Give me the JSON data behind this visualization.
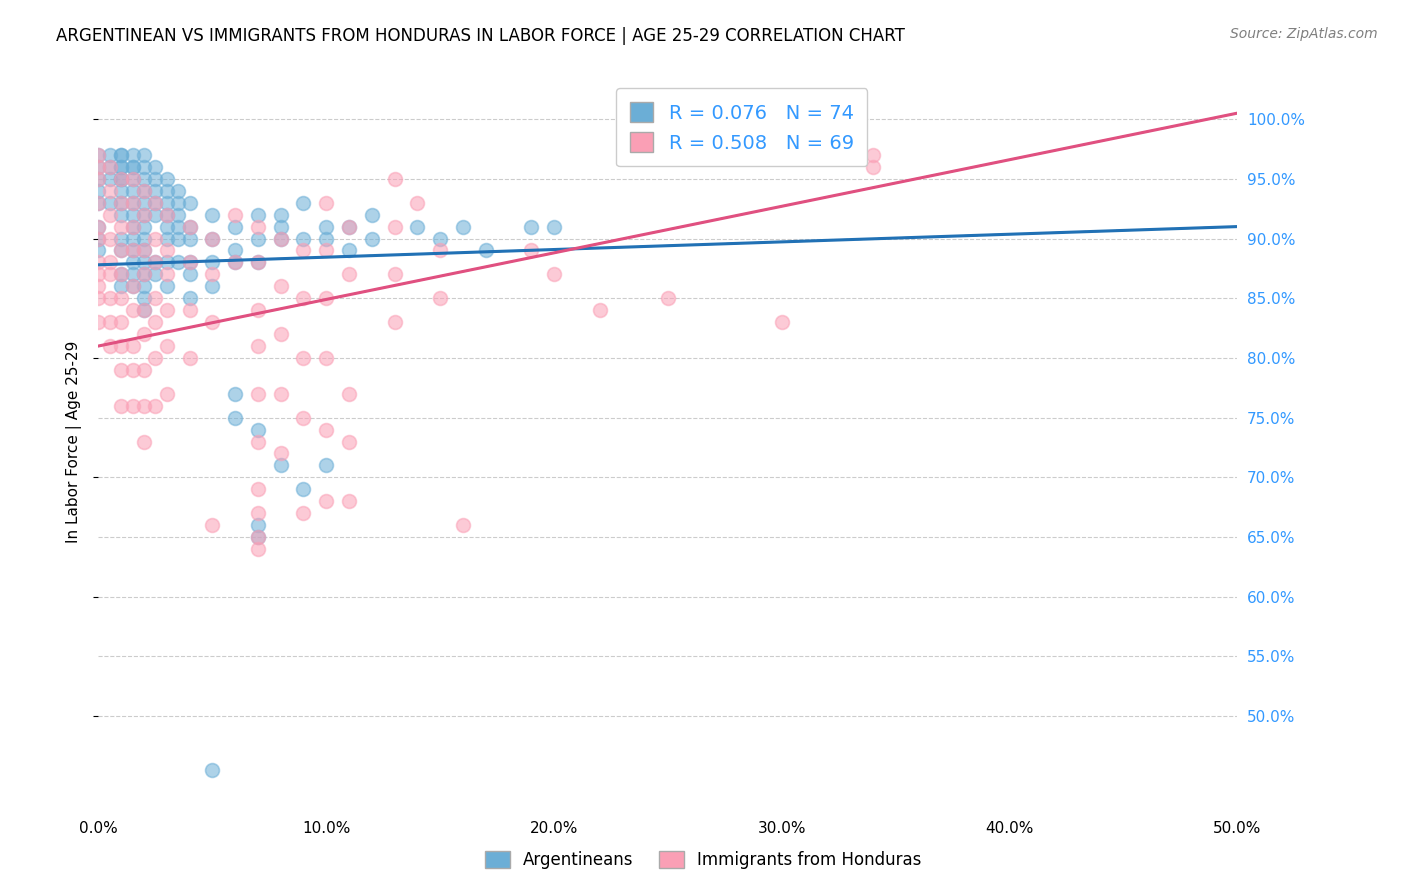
{
  "title": "ARGENTINEAN VS IMMIGRANTS FROM HONDURAS IN LABOR FORCE | AGE 25-29 CORRELATION CHART",
  "source": "Source: ZipAtlas.com",
  "ylabel": "In Labor Force | Age 25-29",
  "xlabel_ticks": [
    "0.0%",
    "10.0%",
    "20.0%",
    "30.0%",
    "40.0%",
    "50.0%"
  ],
  "xlabel_vals": [
    0.0,
    0.1,
    0.2,
    0.3,
    0.4,
    0.5
  ],
  "ylabel_ticks": [
    "100.0%",
    "95.0%",
    "90.0%",
    "85.0%",
    "80.0%",
    "75.0%",
    "70.0%",
    "65.0%",
    "60.0%",
    "55.0%",
    "50.0%"
  ],
  "ylabel_vals": [
    1.0,
    0.95,
    0.9,
    0.85,
    0.8,
    0.75,
    0.7,
    0.65,
    0.6,
    0.55,
    0.5
  ],
  "xlim": [
    0.0,
    0.5
  ],
  "ylim": [
    0.42,
    1.04
  ],
  "argentinean_R": 0.076,
  "argentinean_N": 74,
  "honduras_R": 0.508,
  "honduras_N": 69,
  "blue_color": "#6baed6",
  "pink_color": "#fa9fb5",
  "blue_line_color": "#2171b5",
  "pink_line_color": "#e05080",
  "blue_line_x": [
    0.0,
    0.5
  ],
  "blue_line_y": [
    0.878,
    0.91
  ],
  "pink_line_x": [
    0.0,
    0.5
  ],
  "pink_line_y": [
    0.81,
    1.005
  ],
  "blue_scatter": [
    [
      0.0,
      0.97
    ],
    [
      0.0,
      0.96
    ],
    [
      0.0,
      0.95
    ],
    [
      0.0,
      0.94
    ],
    [
      0.0,
      0.93
    ],
    [
      0.0,
      0.91
    ],
    [
      0.0,
      0.9
    ],
    [
      0.0,
      0.89
    ],
    [
      0.005,
      0.97
    ],
    [
      0.005,
      0.96
    ],
    [
      0.005,
      0.95
    ],
    [
      0.005,
      0.93
    ],
    [
      0.01,
      0.97
    ],
    [
      0.01,
      0.97
    ],
    [
      0.01,
      0.96
    ],
    [
      0.01,
      0.96
    ],
    [
      0.01,
      0.95
    ],
    [
      0.01,
      0.95
    ],
    [
      0.01,
      0.94
    ],
    [
      0.01,
      0.93
    ],
    [
      0.01,
      0.92
    ],
    [
      0.01,
      0.9
    ],
    [
      0.01,
      0.89
    ],
    [
      0.01,
      0.87
    ],
    [
      0.01,
      0.86
    ],
    [
      0.015,
      0.97
    ],
    [
      0.015,
      0.96
    ],
    [
      0.015,
      0.96
    ],
    [
      0.015,
      0.95
    ],
    [
      0.015,
      0.94
    ],
    [
      0.015,
      0.93
    ],
    [
      0.015,
      0.92
    ],
    [
      0.015,
      0.91
    ],
    [
      0.015,
      0.9
    ],
    [
      0.015,
      0.89
    ],
    [
      0.015,
      0.88
    ],
    [
      0.015,
      0.87
    ],
    [
      0.015,
      0.86
    ],
    [
      0.02,
      0.97
    ],
    [
      0.02,
      0.96
    ],
    [
      0.02,
      0.95
    ],
    [
      0.02,
      0.94
    ],
    [
      0.02,
      0.93
    ],
    [
      0.02,
      0.92
    ],
    [
      0.02,
      0.91
    ],
    [
      0.02,
      0.9
    ],
    [
      0.02,
      0.89
    ],
    [
      0.02,
      0.88
    ],
    [
      0.02,
      0.87
    ],
    [
      0.02,
      0.86
    ],
    [
      0.02,
      0.85
    ],
    [
      0.02,
      0.84
    ],
    [
      0.025,
      0.96
    ],
    [
      0.025,
      0.95
    ],
    [
      0.025,
      0.94
    ],
    [
      0.025,
      0.93
    ],
    [
      0.025,
      0.92
    ],
    [
      0.025,
      0.88
    ],
    [
      0.025,
      0.87
    ],
    [
      0.03,
      0.95
    ],
    [
      0.03,
      0.94
    ],
    [
      0.03,
      0.93
    ],
    [
      0.03,
      0.92
    ],
    [
      0.03,
      0.91
    ],
    [
      0.03,
      0.9
    ],
    [
      0.03,
      0.88
    ],
    [
      0.03,
      0.86
    ],
    [
      0.035,
      0.94
    ],
    [
      0.035,
      0.93
    ],
    [
      0.035,
      0.92
    ],
    [
      0.035,
      0.91
    ],
    [
      0.035,
      0.9
    ],
    [
      0.035,
      0.88
    ],
    [
      0.04,
      0.93
    ],
    [
      0.04,
      0.91
    ],
    [
      0.04,
      0.9
    ],
    [
      0.04,
      0.88
    ],
    [
      0.04,
      0.87
    ],
    [
      0.04,
      0.85
    ],
    [
      0.05,
      0.92
    ],
    [
      0.05,
      0.9
    ],
    [
      0.05,
      0.88
    ],
    [
      0.05,
      0.86
    ],
    [
      0.06,
      0.91
    ],
    [
      0.06,
      0.89
    ],
    [
      0.06,
      0.88
    ],
    [
      0.07,
      0.92
    ],
    [
      0.07,
      0.9
    ],
    [
      0.07,
      0.88
    ],
    [
      0.08,
      0.92
    ],
    [
      0.08,
      0.91
    ],
    [
      0.08,
      0.9
    ],
    [
      0.09,
      0.93
    ],
    [
      0.09,
      0.9
    ],
    [
      0.1,
      0.91
    ],
    [
      0.1,
      0.9
    ],
    [
      0.1,
      0.71
    ],
    [
      0.11,
      0.91
    ],
    [
      0.11,
      0.89
    ],
    [
      0.12,
      0.92
    ],
    [
      0.12,
      0.9
    ],
    [
      0.14,
      0.91
    ],
    [
      0.15,
      0.9
    ],
    [
      0.16,
      0.91
    ],
    [
      0.17,
      0.89
    ],
    [
      0.19,
      0.91
    ],
    [
      0.2,
      0.91
    ],
    [
      0.06,
      0.77
    ],
    [
      0.06,
      0.75
    ],
    [
      0.07,
      0.74
    ],
    [
      0.08,
      0.71
    ],
    [
      0.09,
      0.69
    ],
    [
      0.07,
      0.66
    ],
    [
      0.07,
      0.65
    ],
    [
      0.05,
      0.455
    ]
  ],
  "pink_scatter": [
    [
      0.0,
      0.97
    ],
    [
      0.0,
      0.96
    ],
    [
      0.0,
      0.95
    ],
    [
      0.0,
      0.93
    ],
    [
      0.0,
      0.91
    ],
    [
      0.0,
      0.9
    ],
    [
      0.0,
      0.88
    ],
    [
      0.0,
      0.87
    ],
    [
      0.0,
      0.86
    ],
    [
      0.0,
      0.85
    ],
    [
      0.0,
      0.83
    ],
    [
      0.005,
      0.96
    ],
    [
      0.005,
      0.94
    ],
    [
      0.005,
      0.92
    ],
    [
      0.005,
      0.9
    ],
    [
      0.005,
      0.88
    ],
    [
      0.005,
      0.87
    ],
    [
      0.005,
      0.85
    ],
    [
      0.005,
      0.83
    ],
    [
      0.005,
      0.81
    ],
    [
      0.01,
      0.95
    ],
    [
      0.01,
      0.93
    ],
    [
      0.01,
      0.91
    ],
    [
      0.01,
      0.89
    ],
    [
      0.01,
      0.87
    ],
    [
      0.01,
      0.85
    ],
    [
      0.01,
      0.83
    ],
    [
      0.01,
      0.81
    ],
    [
      0.01,
      0.79
    ],
    [
      0.01,
      0.76
    ],
    [
      0.015,
      0.95
    ],
    [
      0.015,
      0.93
    ],
    [
      0.015,
      0.91
    ],
    [
      0.015,
      0.89
    ],
    [
      0.015,
      0.86
    ],
    [
      0.015,
      0.84
    ],
    [
      0.015,
      0.81
    ],
    [
      0.015,
      0.79
    ],
    [
      0.015,
      0.76
    ],
    [
      0.02,
      0.94
    ],
    [
      0.02,
      0.92
    ],
    [
      0.02,
      0.89
    ],
    [
      0.02,
      0.87
    ],
    [
      0.02,
      0.84
    ],
    [
      0.02,
      0.82
    ],
    [
      0.02,
      0.79
    ],
    [
      0.02,
      0.76
    ],
    [
      0.02,
      0.73
    ],
    [
      0.025,
      0.93
    ],
    [
      0.025,
      0.9
    ],
    [
      0.025,
      0.88
    ],
    [
      0.025,
      0.85
    ],
    [
      0.025,
      0.83
    ],
    [
      0.025,
      0.8
    ],
    [
      0.025,
      0.76
    ],
    [
      0.03,
      0.92
    ],
    [
      0.03,
      0.89
    ],
    [
      0.03,
      0.87
    ],
    [
      0.03,
      0.84
    ],
    [
      0.03,
      0.81
    ],
    [
      0.03,
      0.77
    ],
    [
      0.04,
      0.91
    ],
    [
      0.04,
      0.88
    ],
    [
      0.04,
      0.84
    ],
    [
      0.04,
      0.8
    ],
    [
      0.05,
      0.9
    ],
    [
      0.05,
      0.87
    ],
    [
      0.05,
      0.83
    ],
    [
      0.05,
      0.66
    ],
    [
      0.06,
      0.92
    ],
    [
      0.06,
      0.88
    ],
    [
      0.07,
      0.91
    ],
    [
      0.07,
      0.88
    ],
    [
      0.07,
      0.84
    ],
    [
      0.07,
      0.81
    ],
    [
      0.07,
      0.77
    ],
    [
      0.07,
      0.73
    ],
    [
      0.07,
      0.69
    ],
    [
      0.07,
      0.65
    ],
    [
      0.08,
      0.9
    ],
    [
      0.08,
      0.86
    ],
    [
      0.08,
      0.82
    ],
    [
      0.08,
      0.77
    ],
    [
      0.08,
      0.72
    ],
    [
      0.09,
      0.89
    ],
    [
      0.09,
      0.85
    ],
    [
      0.09,
      0.8
    ],
    [
      0.09,
      0.75
    ],
    [
      0.1,
      0.93
    ],
    [
      0.1,
      0.89
    ],
    [
      0.1,
      0.85
    ],
    [
      0.1,
      0.8
    ],
    [
      0.1,
      0.74
    ],
    [
      0.1,
      0.68
    ],
    [
      0.11,
      0.91
    ],
    [
      0.11,
      0.87
    ],
    [
      0.13,
      0.95
    ],
    [
      0.14,
      0.93
    ],
    [
      0.15,
      0.89
    ],
    [
      0.15,
      0.85
    ],
    [
      0.19,
      0.89
    ],
    [
      0.2,
      0.87
    ],
    [
      0.25,
      0.85
    ],
    [
      0.3,
      0.83
    ],
    [
      0.34,
      0.97
    ],
    [
      0.34,
      0.96
    ],
    [
      0.22,
      0.84
    ],
    [
      0.13,
      0.91
    ],
    [
      0.13,
      0.87
    ],
    [
      0.13,
      0.83
    ],
    [
      0.11,
      0.77
    ],
    [
      0.11,
      0.73
    ],
    [
      0.11,
      0.68
    ],
    [
      0.09,
      0.67
    ],
    [
      0.07,
      0.67
    ],
    [
      0.07,
      0.64
    ],
    [
      0.16,
      0.66
    ]
  ]
}
